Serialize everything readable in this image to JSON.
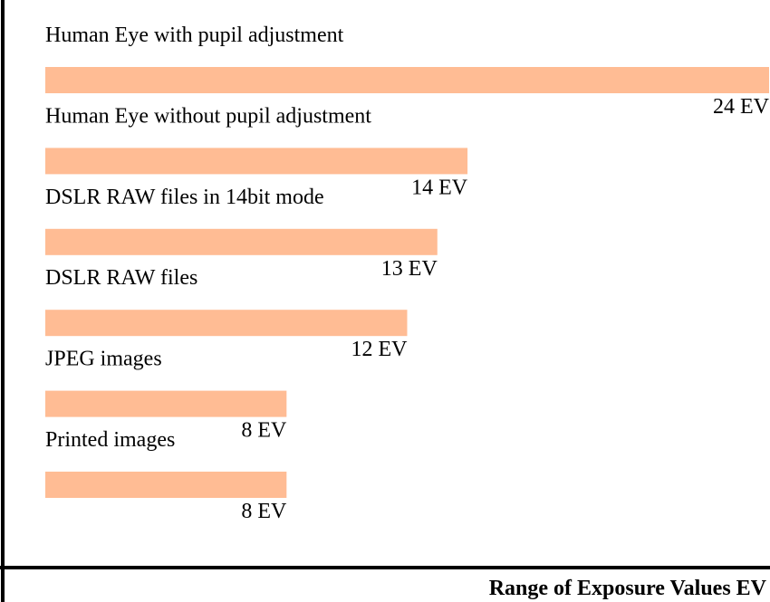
{
  "chart_data": {
    "type": "bar",
    "orientation": "horizontal",
    "categories": [
      "Human Eye with pupil adjustment",
      "Human Eye without pupil adjustment",
      "DSLR RAW files in 14bit mode",
      "DSLR RAW files",
      "JPEG images",
      "Printed images"
    ],
    "values": [
      24,
      14,
      13,
      12,
      8,
      8
    ],
    "value_labels": [
      "24 EV",
      "14 EV",
      "13 EV",
      "12 EV",
      "8 EV",
      "8 EV"
    ],
    "title": "",
    "xlabel": "Range of Exposure Values EV",
    "ylabel": "",
    "xlim": [
      0,
      24
    ],
    "grid": false,
    "legend": "none",
    "bar_color": "#ffbc94",
    "axis_color": "#000000"
  }
}
